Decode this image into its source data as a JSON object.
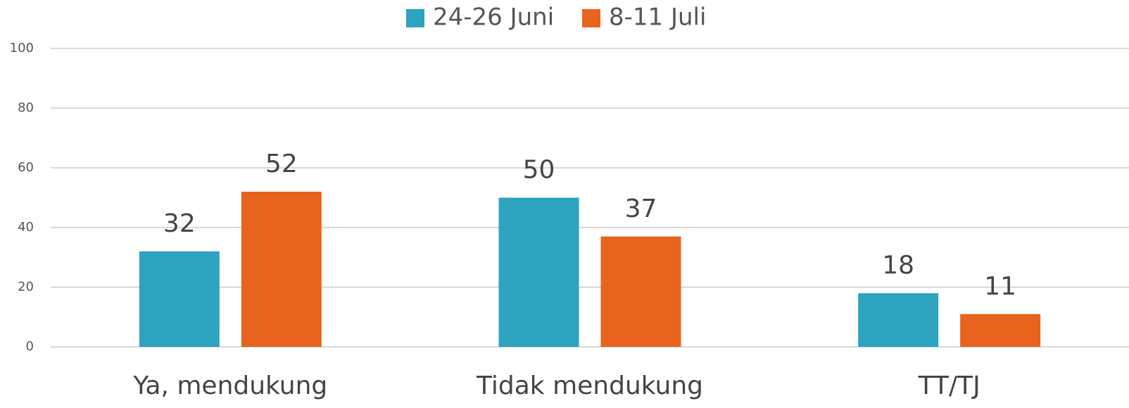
{
  "chart_data": {
    "type": "bar",
    "categories": [
      "Ya, mendukung",
      "Tidak mendukung",
      "TT/TJ"
    ],
    "series": [
      {
        "name": "24-26 Juni",
        "color": "#2da3c0",
        "values": [
          32,
          50,
          18
        ]
      },
      {
        "name": "8-11 Juli",
        "color": "#e8641e",
        "values": [
          52,
          37,
          11
        ]
      }
    ],
    "ylim": [
      0,
      100
    ],
    "yticks": [
      0,
      20,
      40,
      60,
      80,
      100
    ],
    "grid": true,
    "legend": "top"
  }
}
